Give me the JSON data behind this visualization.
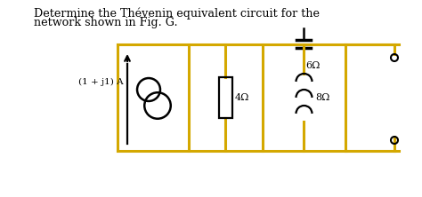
{
  "title_line1": "Determine the Thévenin equivalent circuit for the",
  "title_line2": "network shown in Fig. G.",
  "circuit_color": "#D4A800",
  "text_color": "#000000",
  "background_color": "#ffffff",
  "label_current_source": "(1 + j1) A",
  "label_resistor1": "4Ω",
  "label_capacitor": "6Ω",
  "label_inductor": "8Ω",
  "fig_width": 4.74,
  "fig_height": 2.22,
  "dpi": 100
}
